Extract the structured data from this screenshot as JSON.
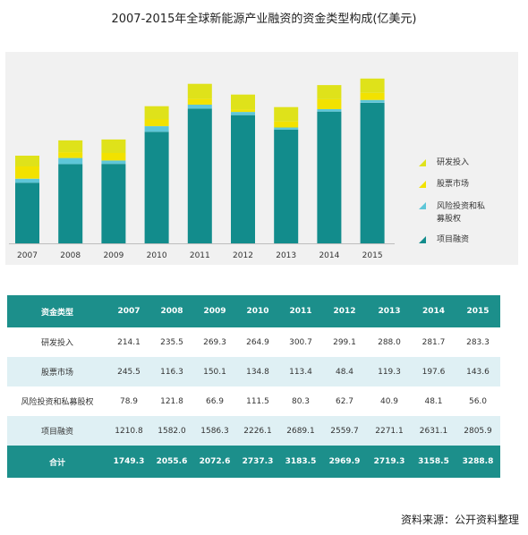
{
  "title": "2007-2015年全球新能源产业融资的资金类型构成(亿美元)",
  "source": "资料来源：公开资料整理",
  "colors": {
    "project_finance": "#128c8c",
    "venture_capital": "#5ec6d8",
    "public_markets": "#f2e200",
    "rd": "#dfe21a",
    "table_header": "#1c8f8b",
    "table_alt_row": "#dff0f4",
    "panel_bg": "#f1f1f1"
  },
  "chart_data": {
    "type": "bar",
    "stacked": true,
    "categories": [
      "2007",
      "2008",
      "2009",
      "2010",
      "2011",
      "2012",
      "2013",
      "2014",
      "2015"
    ],
    "series": [
      {
        "name": "项目融资",
        "values": [
          1210.8,
          1582.0,
          1586.3,
          2226.1,
          2689.1,
          2559.7,
          2271.1,
          2631.1,
          2805.9
        ]
      },
      {
        "name": "风险投资和私募股权",
        "values": [
          78.9,
          121.8,
          66.9,
          111.5,
          80.3,
          62.7,
          40.9,
          48.1,
          56.0
        ]
      },
      {
        "name": "股票市场",
        "values": [
          245.5,
          116.3,
          150.1,
          134.8,
          113.4,
          48.4,
          119.3,
          197.6,
          143.6
        ]
      },
      {
        "name": "研发投入",
        "values": [
          214.1,
          235.5,
          269.3,
          264.9,
          300.7,
          299.1,
          288.0,
          281.7,
          283.3
        ]
      }
    ],
    "legend": [
      "研发投入",
      "股票市场",
      "风险投资和私募股权",
      "项目融资"
    ],
    "legend_position": "right",
    "ylim": [
      0,
      3500
    ],
    "grid": false
  },
  "table": {
    "header": [
      "资金类型",
      "2007",
      "2008",
      "2009",
      "2010",
      "2011",
      "2012",
      "2013",
      "2014",
      "2015"
    ],
    "rows": [
      [
        "研发投入",
        "214.1",
        "235.5",
        "269.3",
        "264.9",
        "300.7",
        "299.1",
        "288.0",
        "281.7",
        "283.3"
      ],
      [
        "股票市场",
        "245.5",
        "116.3",
        "150.1",
        "134.8",
        "113.4",
        "48.4",
        "119.3",
        "197.6",
        "143.6"
      ],
      [
        "风险投资和私募股权",
        "78.9",
        "121.8",
        "66.9",
        "111.5",
        "80.3",
        "62.7",
        "40.9",
        "48.1",
        "56.0"
      ],
      [
        "项目融资",
        "1210.8",
        "1582.0",
        "1586.3",
        "2226.1",
        "2689.1",
        "2559.7",
        "2271.1",
        "2631.1",
        "2805.9"
      ]
    ],
    "total": [
      "合计",
      "1749.3",
      "2055.6",
      "2072.6",
      "2737.3",
      "3183.5",
      "2969.9",
      "2719.3",
      "3158.5",
      "3288.8"
    ]
  }
}
